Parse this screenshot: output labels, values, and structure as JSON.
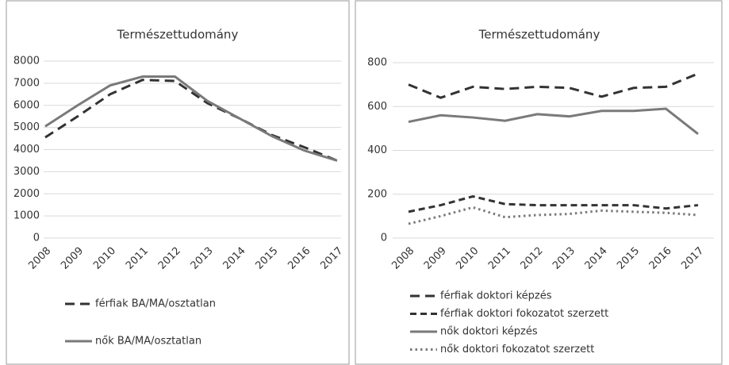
{
  "chart_data": [
    {
      "type": "line",
      "title": "Természettudomány",
      "categories": [
        "2008",
        "2009",
        "2010",
        "2011",
        "2012",
        "2013",
        "2014",
        "2015",
        "2016",
        "2017"
      ],
      "series": [
        {
          "name": "férfiak BA/MA/osztatlan",
          "color": "#333333",
          "style": "long-dash",
          "values": [
            4550,
            5500,
            6500,
            7150,
            7100,
            6100,
            5400,
            4650,
            4100,
            3500
          ]
        },
        {
          "name": "nők BA/MA/osztatlan",
          "color": "#7a7a7a",
          "style": "solid",
          "values": [
            5050,
            6000,
            6900,
            7300,
            7300,
            6200,
            5400,
            4600,
            3950,
            3500
          ]
        }
      ],
      "ylim": [
        0,
        8000
      ],
      "yticks": [
        0,
        1000,
        2000,
        3000,
        4000,
        5000,
        6000,
        7000,
        8000
      ],
      "grid": true,
      "legend": "bottom"
    },
    {
      "type": "line",
      "title": "Természettudomány",
      "categories": [
        "2008",
        "2009",
        "2010",
        "2011",
        "2012",
        "2013",
        "2014",
        "2015",
        "2016",
        "2017"
      ],
      "series": [
        {
          "name": "férfiak doktori képzés",
          "color": "#333333",
          "style": "long-dash",
          "values": [
            700,
            640,
            690,
            680,
            690,
            685,
            645,
            685,
            690,
            750
          ]
        },
        {
          "name": "férfiak doktori fokozatot szerzett",
          "color": "#333333",
          "style": "short-dash",
          "values": [
            120,
            150,
            190,
            155,
            150,
            150,
            150,
            150,
            135,
            150
          ]
        },
        {
          "name": "nők doktori képzés",
          "color": "#7a7a7a",
          "style": "solid",
          "values": [
            530,
            560,
            550,
            535,
            565,
            555,
            580,
            580,
            590,
            475
          ]
        },
        {
          "name": "nők doktori fokozatot szerzett",
          "color": "#7a7a7a",
          "style": "dotted",
          "values": [
            65,
            100,
            140,
            95,
            105,
            110,
            125,
            120,
            115,
            105
          ]
        }
      ],
      "ylim": [
        0,
        800
      ],
      "yticks": [
        0,
        200,
        400,
        600,
        800
      ],
      "grid": true,
      "legend": "bottom"
    }
  ]
}
